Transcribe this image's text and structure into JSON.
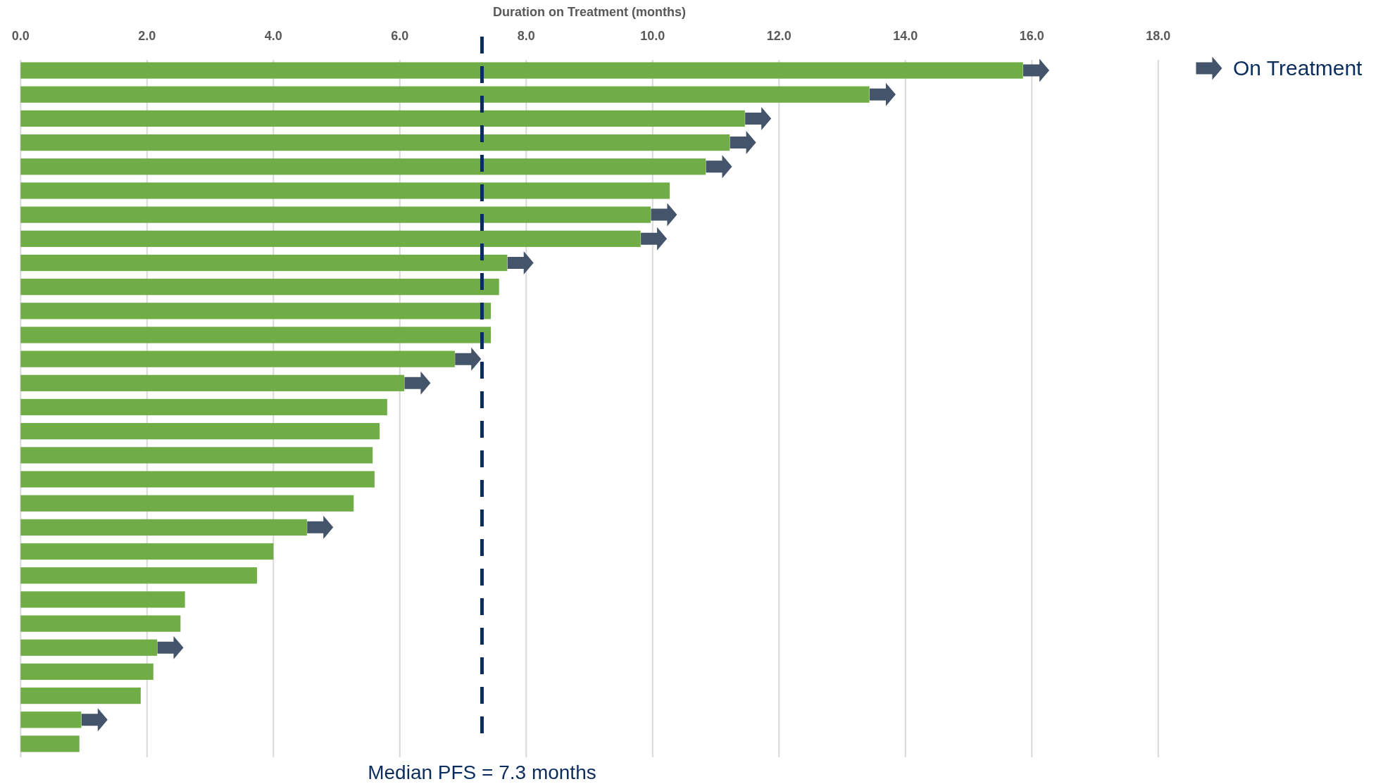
{
  "chart_data": {
    "type": "bar",
    "orientation": "horizontal",
    "xlabel": "Duration on Treatment (months)",
    "categories": [
      null,
      null,
      null,
      null,
      null,
      null,
      null,
      null,
      null,
      null,
      null,
      null,
      null,
      null,
      null,
      null,
      null,
      null,
      null,
      null,
      null,
      null,
      null,
      null,
      null,
      null,
      null,
      null,
      null
    ],
    "series": [
      {
        "color": "#70ad47",
        "values": [
          15.86,
          13.43,
          11.46,
          11.22,
          10.84,
          10.27,
          9.97,
          9.81,
          7.7,
          7.57,
          7.44,
          7.44,
          6.87,
          6.07,
          5.8,
          5.68,
          5.57,
          5.6,
          5.27,
          4.53,
          4.0,
          3.74,
          2.6,
          2.53,
          2.16,
          2.1,
          1.9,
          0.96,
          0.93
        ]
      },
      {
        "name": "On Treatment",
        "type": "scatter",
        "color": "#44546a",
        "values": [
          16.07,
          13.64,
          11.67,
          11.43,
          11.05,
          null,
          10.18,
          10.02,
          7.91,
          null,
          null,
          null,
          7.08,
          6.28,
          null,
          null,
          null,
          null,
          null,
          4.74,
          null,
          null,
          null,
          null,
          2.37,
          null,
          null,
          1.17,
          null
        ]
      }
    ],
    "xlim": [
      0,
      18
    ],
    "xticks": [
      {
        "value": 0,
        "label": "0.0"
      },
      {
        "value": 2,
        "label": "2.0"
      },
      {
        "value": 4,
        "label": "4.0"
      },
      {
        "value": 6,
        "label": "6.0"
      },
      {
        "value": 8,
        "label": "8.0"
      },
      {
        "value": 10,
        "label": "10.0"
      },
      {
        "value": 12,
        "label": "12.0"
      },
      {
        "value": 14,
        "label": "14.0"
      },
      {
        "value": 16,
        "label": "16.0"
      },
      {
        "value": 18,
        "label": "18.0"
      }
    ],
    "grid": "x",
    "legend": "top right",
    "ref_lines": [
      {
        "axis": "x",
        "value": 7.3,
        "label": "Median PFS = 7.3 months",
        "color": "#0b2d5e",
        "line_style": "dashed"
      }
    ]
  }
}
